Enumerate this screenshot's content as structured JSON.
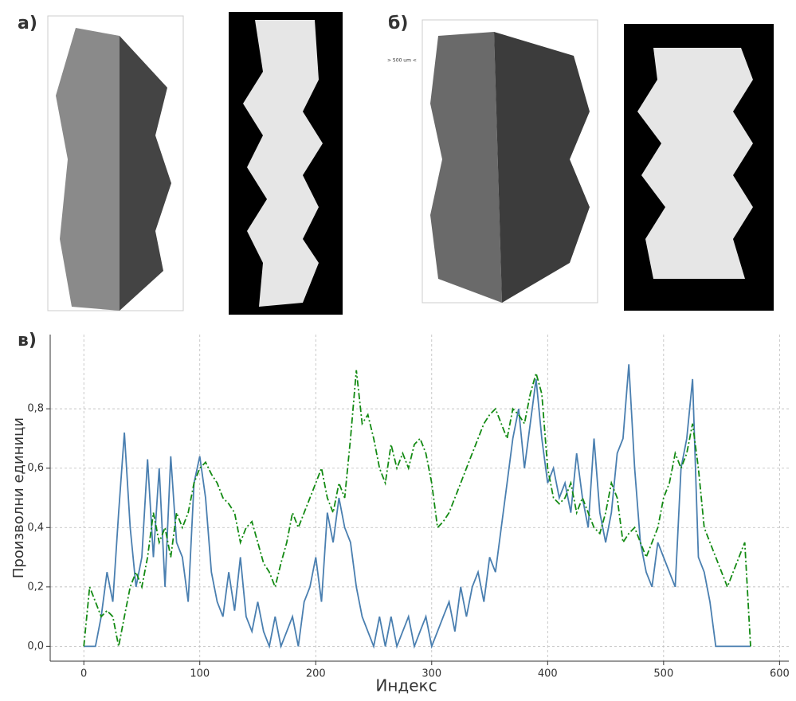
{
  "labels": [
    "а)",
    "б)",
    "> 500 um <"
  ],
  "chart_data": {
    "type": "line",
    "panel_label": "в)",
    "x_label": "Индекс",
    "y_label": "Произволни единици",
    "xlim": [
      -29,
      608
    ],
    "ylim": [
      -0.05,
      1.05
    ],
    "xticks": [
      0,
      100,
      200,
      300,
      400,
      500,
      600
    ],
    "yticks": [
      {
        "value": 0,
        "label": "0,0"
      },
      {
        "value": 0.2,
        "label": "0,2"
      },
      {
        "value": 0.4,
        "label": "0,4"
      },
      {
        "value": 0.6,
        "label": "0,6"
      },
      {
        "value": 0.8,
        "label": "0,8"
      }
    ],
    "grid": true,
    "x": [
      0,
      5,
      10,
      15,
      20,
      25,
      30,
      35,
      40,
      45,
      50,
      55,
      60,
      65,
      70,
      75,
      80,
      85,
      90,
      95,
      100,
      105,
      110,
      115,
      120,
      125,
      130,
      135,
      140,
      145,
      150,
      155,
      160,
      165,
      170,
      175,
      180,
      185,
      190,
      195,
      200,
      205,
      210,
      215,
      220,
      225,
      230,
      235,
      240,
      245,
      250,
      255,
      260,
      265,
      270,
      275,
      280,
      285,
      290,
      295,
      300,
      305,
      310,
      315,
      320,
      325,
      330,
      335,
      340,
      345,
      350,
      355,
      360,
      365,
      370,
      375,
      380,
      385,
      390,
      395,
      400,
      405,
      410,
      415,
      420,
      425,
      430,
      435,
      440,
      445,
      450,
      455,
      460,
      465,
      470,
      475,
      480,
      485,
      490,
      495,
      500,
      505,
      510,
      515,
      520,
      525,
      530,
      535,
      540,
      545,
      550,
      555,
      560,
      565,
      570,
      575
    ],
    "series": [
      {
        "color": "#4a7fb0",
        "style": "solid",
        "values": [
          0,
          0,
          0,
          0.1,
          0.25,
          0.15,
          0.45,
          0.72,
          0.4,
          0.2,
          0.3,
          0.63,
          0.3,
          0.6,
          0.2,
          0.64,
          0.35,
          0.3,
          0.15,
          0.55,
          0.64,
          0.5,
          0.25,
          0.15,
          0.1,
          0.25,
          0.12,
          0.3,
          0.1,
          0.05,
          0.15,
          0.05,
          0,
          0.1,
          0,
          0.05,
          0.1,
          0,
          0.15,
          0.2,
          0.3,
          0.15,
          0.45,
          0.35,
          0.5,
          0.4,
          0.35,
          0.2,
          0.1,
          0.05,
          0,
          0.1,
          0,
          0.1,
          0,
          0.05,
          0.1,
          0,
          0.05,
          0.1,
          0,
          0.05,
          0.1,
          0.15,
          0.05,
          0.2,
          0.1,
          0.2,
          0.25,
          0.15,
          0.3,
          0.25,
          0.4,
          0.55,
          0.7,
          0.8,
          0.6,
          0.75,
          0.9,
          0.7,
          0.55,
          0.6,
          0.5,
          0.55,
          0.45,
          0.65,
          0.5,
          0.4,
          0.7,
          0.45,
          0.35,
          0.45,
          0.65,
          0.7,
          0.95,
          0.6,
          0.35,
          0.25,
          0.2,
          0.35,
          0.3,
          0.25,
          0.2,
          0.6,
          0.7,
          0.9,
          0.3,
          0.25,
          0.15,
          0,
          0,
          0,
          0,
          0,
          0,
          0
        ]
      },
      {
        "color": "#138a13",
        "style": "dashdot",
        "values": [
          0,
          0.2,
          0.15,
          0.1,
          0.12,
          0.1,
          0,
          0.1,
          0.2,
          0.25,
          0.2,
          0.3,
          0.45,
          0.35,
          0.4,
          0.3,
          0.45,
          0.4,
          0.45,
          0.55,
          0.6,
          0.62,
          0.58,
          0.55,
          0.5,
          0.48,
          0.45,
          0.35,
          0.4,
          0.42,
          0.35,
          0.28,
          0.25,
          0.2,
          0.28,
          0.35,
          0.45,
          0.4,
          0.45,
          0.5,
          0.55,
          0.6,
          0.5,
          0.45,
          0.55,
          0.5,
          0.7,
          0.93,
          0.75,
          0.78,
          0.7,
          0.6,
          0.55,
          0.68,
          0.6,
          0.65,
          0.6,
          0.68,
          0.7,
          0.65,
          0.55,
          0.4,
          0.42,
          0.45,
          0.5,
          0.55,
          0.6,
          0.65,
          0.7,
          0.75,
          0.78,
          0.8,
          0.75,
          0.7,
          0.8,
          0.78,
          0.75,
          0.85,
          0.92,
          0.85,
          0.6,
          0.5,
          0.48,
          0.5,
          0.55,
          0.45,
          0.5,
          0.45,
          0.4,
          0.38,
          0.45,
          0.55,
          0.5,
          0.35,
          0.38,
          0.4,
          0.35,
          0.3,
          0.35,
          0.4,
          0.5,
          0.55,
          0.65,
          0.6,
          0.65,
          0.75,
          0.6,
          0.4,
          0.35,
          0.3,
          0.25,
          0.2,
          0.25,
          0.3,
          0.35,
          0
        ]
      }
    ]
  }
}
